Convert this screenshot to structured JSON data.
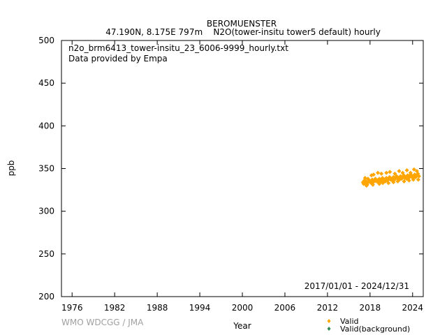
{
  "chart_data": {
    "type": "scatter",
    "title": "BEROMUENSTER",
    "subtitle": "47.190N, 8.175E 797m    N2O(tower-insitu tower5 default) hourly",
    "file_label": "n2o_brm6413_tower-insitu_23_6006-9999_hourly.txt",
    "provider_label": "Data provided by Empa",
    "date_range_label": "2017/01/01 - 2024/12/31",
    "xlabel": "Year",
    "ylabel": "ppb",
    "xlim": [
      1974.5,
      2025.5
    ],
    "ylim": [
      200,
      500
    ],
    "x_ticks": [
      1976,
      1982,
      1988,
      1994,
      2000,
      2006,
      2012,
      2018,
      2024
    ],
    "y_ticks": [
      200,
      250,
      300,
      350,
      400,
      450,
      500
    ],
    "grid": false,
    "legend": {
      "placement": "bottom-right",
      "entries": [
        {
          "label": "Valid",
          "color": "#ffa500"
        },
        {
          "label": "Valid(background)",
          "color": "#2e8b57"
        }
      ]
    },
    "series": [
      {
        "name": "Valid",
        "color": "#ffa500",
        "x": [
          2017.0,
          2017.1,
          2017.2,
          2017.3,
          2017.45,
          2017.6,
          2017.75,
          2017.9,
          2018.0,
          2018.15,
          2018.3,
          2018.45,
          2018.6,
          2018.75,
          2018.9,
          2019.0,
          2019.15,
          2019.3,
          2019.45,
          2019.6,
          2019.75,
          2019.9,
          2020.0,
          2020.15,
          2020.3,
          2020.45,
          2020.6,
          2020.75,
          2020.9,
          2021.0,
          2021.15,
          2021.3,
          2021.45,
          2021.6,
          2021.75,
          2021.9,
          2022.0,
          2022.15,
          2022.3,
          2022.45,
          2022.6,
          2022.75,
          2022.9,
          2023.0,
          2023.15,
          2023.3,
          2023.45,
          2023.6,
          2023.75,
          2023.9,
          2024.0,
          2024.15,
          2024.3,
          2024.45,
          2024.6,
          2024.75,
          2024.9,
          2017.3,
          2017.7,
          2018.2,
          2018.5,
          2019.1,
          2019.6,
          2020.3,
          2020.8,
          2021.5,
          2022.1,
          2022.6,
          2023.2,
          2023.7,
          2024.2,
          2024.6,
          2017.5,
          2018.4,
          2019.3,
          2019.8,
          2020.6,
          2021.3,
          2021.9,
          2022.8,
          2023.5,
          2024.1,
          2024.8
        ],
        "y": [
          334,
          332,
          336,
          333,
          335,
          331,
          334,
          336,
          335,
          333,
          337,
          334,
          336,
          338,
          335,
          336,
          334,
          338,
          335,
          337,
          339,
          336,
          337,
          335,
          339,
          336,
          338,
          340,
          337,
          338,
          336,
          340,
          337,
          339,
          341,
          338,
          339,
          337,
          341,
          338,
          340,
          342,
          339,
          340,
          338,
          342,
          339,
          341,
          343,
          340,
          341,
          339,
          343,
          340,
          342,
          344,
          341,
          339,
          338,
          342,
          343,
          345,
          344,
          345,
          346,
          344,
          347,
          345,
          348,
          345,
          349,
          347,
          330,
          331,
          332,
          333,
          333,
          334,
          335,
          335,
          336,
          337,
          337
        ]
      },
      {
        "name": "Valid(background)",
        "color": "#2e8b57",
        "x": [],
        "y": []
      }
    ]
  },
  "watermark": "WMO WDCGG / JMA"
}
